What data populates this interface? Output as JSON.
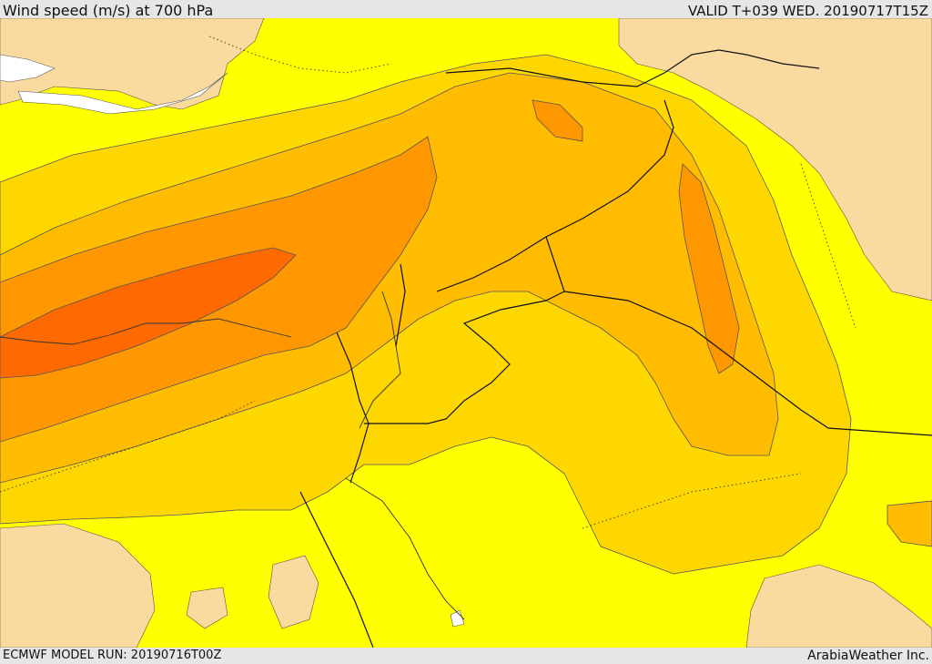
{
  "header": {
    "title": "Wind speed (m/s) at 700 hPa",
    "valid": "VALID T+039 WED. 20190717T15Z"
  },
  "footer": {
    "model_run": "ECMWF MODEL RUN: 20190716T00Z",
    "credit": "ArabiaWeather Inc."
  },
  "colors": {
    "land_low": "#fbdaa0",
    "band1": "#ffff00",
    "band2": "#ffd700",
    "band3": "#ffbc00",
    "band4": "#ff9700",
    "band5": "#ff6a00",
    "sea_ice": "#ffffff"
  }
}
